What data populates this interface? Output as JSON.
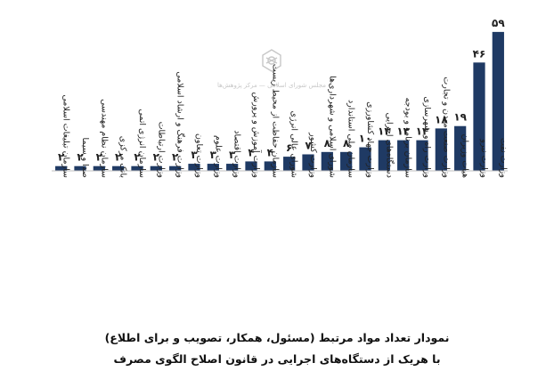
{
  "chart_data": {
    "type": "bar",
    "categories": [
      "سازمان تبلیغات اسلامی",
      "صدا و سیما",
      "سازمان نظام مهندسی",
      "بانک مرکزی",
      "سازمان انرژی اتمی",
      "وزارت ارتباطات",
      "وزارت فرهنگ و ارشاد اسلامی",
      "وزارت تعاون",
      "وزارت علوم",
      "وزارت اقتصاد",
      "وزارت آموزش و پرورش",
      "سازمان حفاظت از محیط زیست",
      "شورای عالی انرژی",
      "وزارت کشور",
      "شورای اسلامی و شهرداری‌ها",
      "سازمان ملی استاندارد",
      "وزارت جهاد کشاورزی",
      "دستگاه‌های اجرایی",
      "سازمان برنامه و بودجه",
      "وزارت راه و شهرسازی",
      "وزارت صنعت معدن و تجارت",
      "هیات وزیران",
      "وزارت نیرو",
      "وزارت نفت"
    ],
    "values": [
      2,
      2,
      2,
      2,
      2,
      2,
      2,
      3,
      3,
      3,
      4,
      4,
      6,
      7,
      8,
      8,
      10,
      13,
      13,
      13,
      18,
      19,
      46,
      59
    ],
    "value_labels": [
      "۲",
      "۲",
      "۲",
      "۲",
      "۲",
      "۲",
      "۲",
      "۳",
      "۳",
      "۳",
      "۴",
      "۴",
      "۶",
      "۷",
      "۸",
      "۸",
      "۱۰",
      "۱۳",
      "۱۳",
      "۱۳",
      "۱۸",
      "۱۹",
      "۴۶",
      "۵۹"
    ],
    "ylim": [
      0,
      65
    ],
    "grid": false,
    "bar_color": "#1f3a64"
  },
  "caption": {
    "line1": "نمودار تعداد مواد مرتبط (مسئول، همکار، تصویب و برای اطلاع)",
    "line2": "با هریک از دستگاه‌های اجرایی در قانون اصلاح الگوی مصرف"
  },
  "watermark": {
    "text": "مجلس شورای اسلامی — مرکز پژوهش‌ها",
    "color": "#9a9a9a"
  }
}
